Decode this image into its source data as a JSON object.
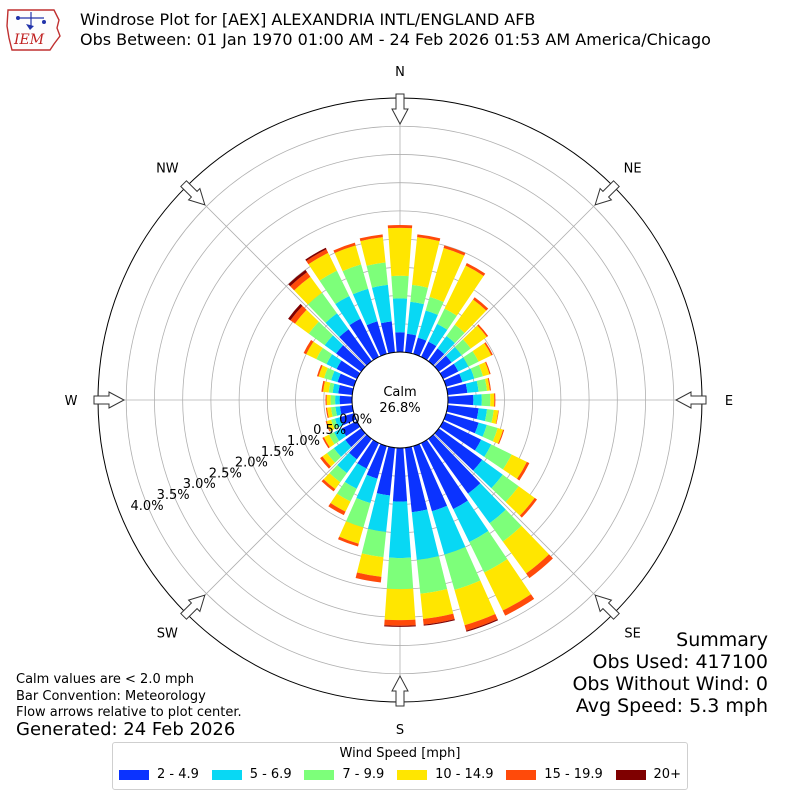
{
  "header": {
    "title_line1": "Windrose Plot for [AEX] ALEXANDRIA INTL/ENGLAND AFB",
    "title_line2": "Obs Between: 01 Jan 1970 01:00 AM - 24 Feb 2026 01:53 AM America/Chicago",
    "logo_text": "IEM"
  },
  "notes": {
    "calm_note": "Calm values are < 2.0 mph",
    "bar_convention": "Bar Convention: Meteorology",
    "flow_arrows": "Flow arrows relative to plot center.",
    "generated": "Generated: 24 Feb 2026"
  },
  "summary": {
    "heading": "Summary",
    "obs_used": "Obs Used: 417100",
    "obs_without_wind": "Obs Without Wind: 0",
    "avg_speed": "Avg Speed: 5.3 mph"
  },
  "legend": {
    "title": "Wind Speed [mph]",
    "items": [
      {
        "label": "2 - 4.9",
        "color": "#0b33ff"
      },
      {
        "label": "5 - 6.9",
        "color": "#08d8f4"
      },
      {
        "label": "7 - 9.9",
        "color": "#7dff7a"
      },
      {
        "label": "10 - 14.9",
        "color": "#ffe600"
      },
      {
        "label": "15 - 19.9",
        "color": "#ff4a0a"
      },
      {
        "label": "20+",
        "color": "#7f0000"
      }
    ]
  },
  "chart_data": {
    "type": "windrose",
    "calm_label": "Calm",
    "calm_value": "26.8%",
    "rlim": [
      0,
      4.5
    ],
    "radial_ticks": [
      0,
      0.5,
      1.0,
      1.5,
      2.0,
      2.5,
      3.0,
      3.5,
      4.0
    ],
    "radial_tick_labels": [
      "0.0%",
      "0.5%",
      "1.0%",
      "1.5%",
      "2.0%",
      "2.5%",
      "3.0%",
      "3.5%",
      "4.0%"
    ],
    "compass_labels": [
      "N",
      "NE",
      "E",
      "SE",
      "S",
      "SW",
      "W",
      "NW"
    ],
    "speed_bins": [
      "2 - 4.9",
      "5 - 6.9",
      "7 - 9.9",
      "10 - 14.9",
      "15 - 19.9",
      "20+"
    ],
    "directions": [
      0,
      10,
      20,
      30,
      40,
      50,
      60,
      70,
      80,
      90,
      100,
      110,
      120,
      130,
      140,
      150,
      160,
      170,
      180,
      190,
      200,
      210,
      220,
      230,
      240,
      250,
      260,
      270,
      280,
      290,
      300,
      310,
      320,
      330,
      340,
      350
    ],
    "cumulative_percent": [
      [
        0.35,
        0.95,
        1.35,
        2.2,
        2.25,
        2.25
      ],
      [
        0.33,
        0.9,
        1.2,
        2.05,
        2.1,
        2.1
      ],
      [
        0.3,
        0.8,
        1.05,
        1.95,
        2.0,
        2.0
      ],
      [
        0.3,
        0.65,
        0.95,
        1.8,
        1.85,
        1.85
      ],
      [
        0.28,
        0.55,
        0.8,
        1.35,
        1.4,
        1.4
      ],
      [
        0.28,
        0.5,
        0.7,
        1.05,
        1.08,
        1.08
      ],
      [
        0.3,
        0.5,
        0.7,
        0.95,
        0.98,
        0.98
      ],
      [
        0.3,
        0.52,
        0.68,
        0.8,
        0.82,
        0.82
      ],
      [
        0.35,
        0.55,
        0.7,
        0.75,
        0.77,
        0.77
      ],
      [
        0.45,
        0.6,
        0.75,
        0.82,
        0.84,
        0.84
      ],
      [
        0.55,
        0.7,
        0.82,
        0.9,
        0.91,
        0.91
      ],
      [
        0.6,
        0.75,
        0.95,
        1.05,
        1.07,
        1.07
      ],
      [
        0.75,
        0.95,
        1.35,
        1.65,
        1.7,
        1.7
      ],
      [
        0.95,
        1.4,
        1.75,
        2.1,
        2.15,
        2.15
      ],
      [
        1.2,
        1.85,
        2.25,
        2.95,
        3.05,
        3.05
      ],
      [
        1.3,
        1.95,
        2.55,
        3.3,
        3.4,
        3.4
      ],
      [
        1.2,
        2.0,
        2.65,
        3.3,
        3.4,
        3.42
      ],
      [
        1.15,
        2.0,
        2.6,
        3.05,
        3.15,
        3.17
      ],
      [
        0.95,
        1.95,
        2.5,
        3.05,
        3.15,
        3.17
      ],
      [
        0.85,
        1.5,
        1.95,
        2.3,
        2.4,
        2.4
      ],
      [
        0.6,
        1.05,
        1.5,
        1.8,
        1.85,
        1.85
      ],
      [
        0.5,
        0.9,
        1.15,
        1.35,
        1.42,
        1.42
      ],
      [
        0.45,
        0.75,
        0.95,
        1.1,
        1.15,
        1.15
      ],
      [
        0.35,
        0.6,
        0.75,
        0.85,
        0.9,
        0.9
      ],
      [
        0.3,
        0.45,
        0.55,
        0.65,
        0.68,
        0.68
      ],
      [
        0.25,
        0.35,
        0.42,
        0.5,
        0.52,
        0.52
      ],
      [
        0.22,
        0.3,
        0.38,
        0.45,
        0.47,
        0.47
      ],
      [
        0.22,
        0.3,
        0.38,
        0.45,
        0.47,
        0.47
      ],
      [
        0.25,
        0.35,
        0.42,
        0.52,
        0.55,
        0.55
      ],
      [
        0.3,
        0.42,
        0.55,
        0.65,
        0.68,
        0.68
      ],
      [
        0.4,
        0.6,
        0.8,
        1.0,
        1.05,
        1.05
      ],
      [
        0.55,
        0.8,
        1.15,
        1.45,
        1.55,
        1.6
      ],
      [
        0.7,
        1.05,
        1.5,
        1.85,
        1.95,
        2.0
      ],
      [
        0.75,
        1.2,
        1.7,
        2.05,
        2.12,
        2.15
      ],
      [
        0.6,
        1.2,
        1.65,
        2.0,
        2.05,
        2.05
      ],
      [
        0.55,
        1.2,
        1.6,
        2.05,
        2.1,
        2.1
      ]
    ]
  }
}
